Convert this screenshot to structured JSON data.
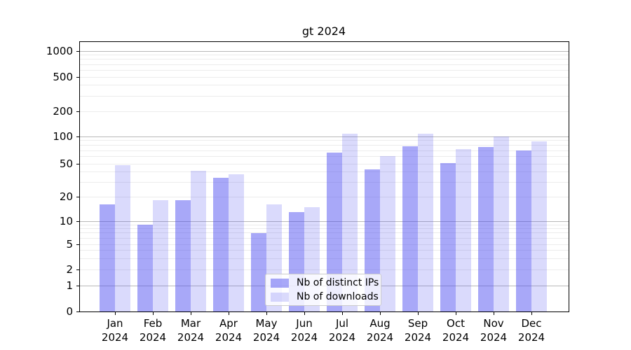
{
  "figure": {
    "title": "gt 2024"
  },
  "chart_data": {
    "type": "bar",
    "title": "gt 2024",
    "categories": [
      "Jan",
      "Feb",
      "Mar",
      "Apr",
      "May",
      "Jun",
      "Jul",
      "Aug",
      "Sep",
      "Oct",
      "Nov",
      "Dec"
    ],
    "x_tick_second_line": "2024",
    "series": [
      {
        "name": "Nb of distinct IPs",
        "color": "rgba(70,70,240,0.47)",
        "values": [
          16,
          9,
          18,
          34,
          7,
          13,
          67,
          43,
          78,
          51,
          76,
          70
        ]
      },
      {
        "name": "Nb of downloads",
        "color": "rgba(70,70,240,0.20)",
        "values": [
          48,
          18,
          41,
          37,
          16,
          15,
          108,
          61,
          108,
          72,
          100,
          88
        ]
      }
    ],
    "yticks": [
      0,
      1,
      2,
      5,
      10,
      20,
      50,
      100,
      200,
      500,
      1000
    ],
    "ylim": [
      0,
      1278
    ],
    "yscale": "symlog",
    "grid": true,
    "legend_position": "lower center",
    "grid_major_color": "#b9b9b9",
    "grid_minor_color": "#ececec"
  }
}
